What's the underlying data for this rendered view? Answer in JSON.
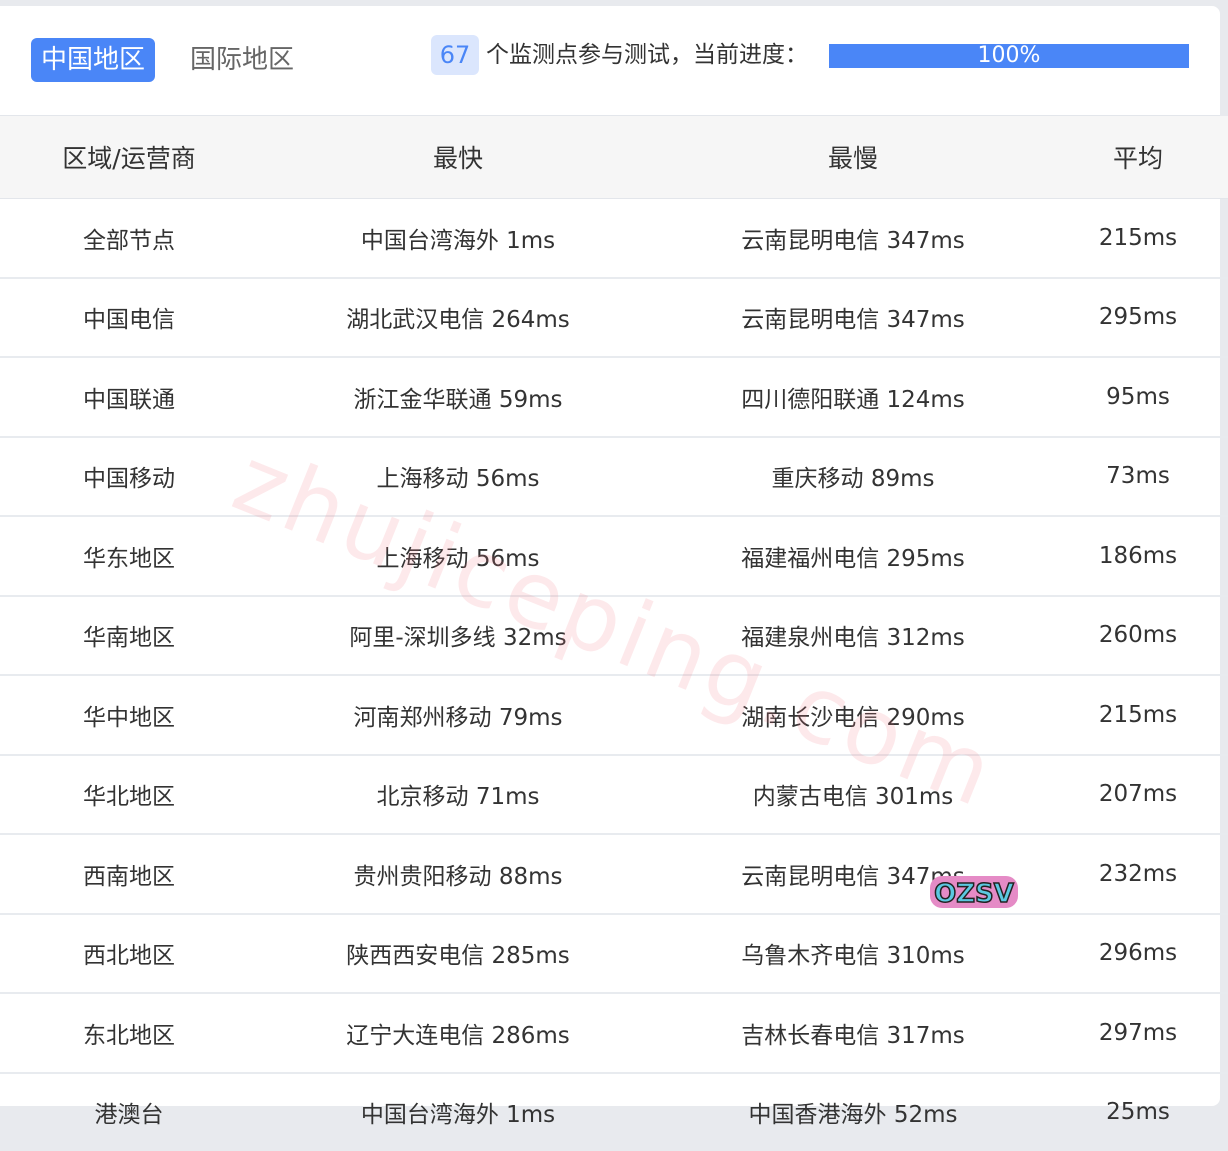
{
  "tabs": [
    {
      "label": "中国地区",
      "active": true
    },
    {
      "label": "国际地区",
      "active": false
    }
  ],
  "monitor": {
    "count": "67",
    "label": "个监测点参与测试，当前进度：",
    "progress_percent": 100,
    "progress_text": "100%"
  },
  "colors": {
    "accent": "#4a86f7",
    "count_bg": "#dbe6fd"
  },
  "table": {
    "headers": [
      "区域/运营商",
      "最快",
      "最慢",
      "平均"
    ],
    "rows": [
      [
        "全部节点",
        "中国台湾海外 1ms",
        "云南昆明电信 347ms",
        "215ms"
      ],
      [
        "中国电信",
        "湖北武汉电信 264ms",
        "云南昆明电信 347ms",
        "295ms"
      ],
      [
        "中国联通",
        "浙江金华联通 59ms",
        "四川德阳联通 124ms",
        "95ms"
      ],
      [
        "中国移动",
        "上海移动 56ms",
        "重庆移动 89ms",
        "73ms"
      ],
      [
        "华东地区",
        "上海移动 56ms",
        "福建福州电信 295ms",
        "186ms"
      ],
      [
        "华南地区",
        "阿里-深圳多线 32ms",
        "福建泉州电信 312ms",
        "260ms"
      ],
      [
        "华中地区",
        "河南郑州移动 79ms",
        "湖南长沙电信 290ms",
        "215ms"
      ],
      [
        "华北地区",
        "北京移动 71ms",
        "内蒙古电信 301ms",
        "207ms"
      ],
      [
        "西南地区",
        "贵州贵阳移动 88ms",
        "云南昆明电信 347ms",
        "232ms"
      ],
      [
        "西北地区",
        "陕西西安电信 285ms",
        "乌鲁木齐电信 310ms",
        "296ms"
      ],
      [
        "东北地区",
        "辽宁大连电信 286ms",
        "吉林长春电信 317ms",
        "297ms"
      ],
      [
        "港澳台",
        "中国台湾海外 1ms",
        "中国香港海外 52ms",
        "25ms"
      ]
    ]
  },
  "watermark": "zhujiceping.com",
  "sticker": "OZSV"
}
